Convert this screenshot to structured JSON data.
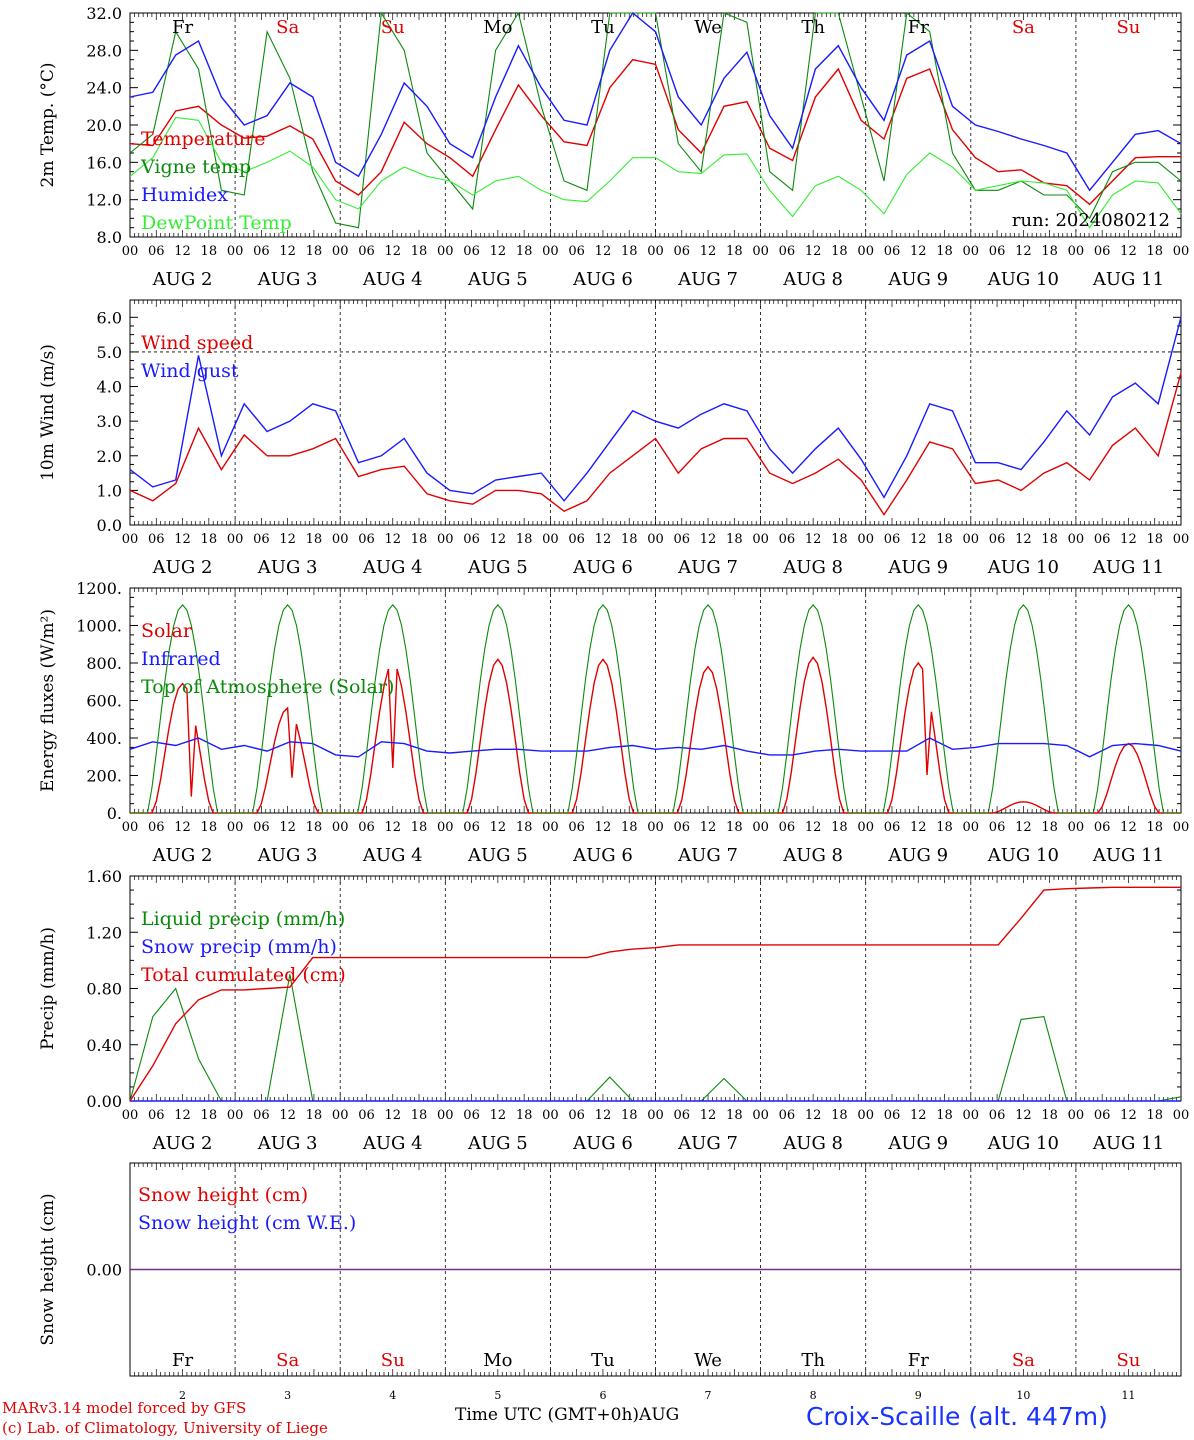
{
  "days": {
    "dates": [
      "AUG  2",
      "AUG  3",
      "AUG  4",
      "AUG  5",
      "AUG  6",
      "AUG  7",
      "AUG  8",
      "AUG  9",
      "AUG 10",
      "AUG 11"
    ],
    "weekdays": [
      "Fr",
      "Sa",
      "Su",
      "Mo",
      "Tu",
      "We",
      "Th",
      "Fr",
      "Sa",
      "Su"
    ],
    "weekend_flags": [
      false,
      true,
      true,
      false,
      false,
      false,
      false,
      false,
      true,
      true
    ],
    "day_numbers": [
      "2",
      "3",
      "4",
      "5",
      "6",
      "7",
      "8",
      "9",
      "10",
      "11"
    ],
    "hour_ticks": [
      "00",
      "06",
      "12",
      "18"
    ],
    "final_tick": "00"
  },
  "colors": {
    "red": "#e00000",
    "green": "#0a8a0a",
    "blue": "#1a1aff",
    "light_green": "#33ee33",
    "purple": "#7a2a8a"
  },
  "run_label": "run: 2024080212",
  "footer": {
    "credit_line1": "MARv3.14 model forced by GFS",
    "credit_line2": "(c) Lab. of Climatology, University of Liege",
    "time_axis": "Time UTC (GMT+0h)",
    "month": "AUG",
    "station": "Croix-Scaille (alt. 447m)"
  },
  "chart_data": [
    {
      "type": "line",
      "ylabel": "2m Temp. (°C)",
      "ylim": [
        8,
        32
      ],
      "yticks": [
        8,
        12,
        16,
        20,
        24,
        28,
        32
      ],
      "ytick_labels": [
        "8.0",
        "12.0",
        "16.0",
        "20.0",
        "24.0",
        "28.0",
        "32.0"
      ],
      "x_unit": "hours since Aug 2 00 UTC (6-hourly)",
      "series": [
        {
          "name": "Temperature",
          "color": "red",
          "values": [
            18,
            17.8,
            21.5,
            22,
            20,
            18.6,
            18.8,
            19.9,
            18.5,
            14,
            12.5,
            15,
            20.3,
            18,
            16.5,
            14.5,
            19.5,
            24.3,
            21,
            18.2,
            17.8,
            24,
            27,
            26.5,
            19.5,
            17,
            22,
            22.5,
            17.5,
            16.2,
            23,
            26,
            20.5,
            18.5,
            25,
            26,
            19.5,
            16.5,
            15,
            15.2,
            13.8,
            13.5,
            11.5,
            14,
            16.5,
            16.6,
            16.6
          ]
        },
        {
          "name": "Vigne temp",
          "color": "green",
          "values": [
            17,
            19,
            30,
            26,
            13,
            12.5,
            30,
            25,
            15,
            9.5,
            9,
            32,
            28,
            17,
            14,
            11,
            28,
            32,
            22,
            14,
            13,
            32,
            33,
            34,
            18,
            15,
            32,
            31,
            15,
            13,
            32,
            32,
            23,
            14,
            32,
            30,
            17,
            13,
            13,
            14,
            12.5,
            12.5,
            10,
            15,
            16,
            16,
            14
          ]
        },
        {
          "name": "Humidex",
          "color": "blue",
          "values": [
            23,
            23.5,
            27.5,
            29,
            23,
            20,
            21,
            24.5,
            23,
            16,
            14.5,
            19,
            24.5,
            22,
            18,
            16.5,
            23,
            28.5,
            24,
            20.5,
            20,
            28,
            32,
            30,
            23,
            20,
            25,
            27.8,
            21,
            17.5,
            26,
            28.5,
            24,
            20.5,
            27.5,
            29,
            22,
            20,
            19.3,
            18.5,
            17.8,
            17,
            13,
            16,
            19,
            19.4,
            18
          ]
        },
        {
          "name": "DewPoint Temp",
          "color": "light_green",
          "values": [
            14.5,
            16.5,
            20.8,
            20.5,
            16,
            15,
            16,
            17.2,
            15.5,
            12,
            11,
            14,
            15.5,
            14.5,
            14,
            12.5,
            14,
            14.5,
            13,
            12,
            11.8,
            14,
            16.5,
            16.5,
            15,
            14.8,
            16.8,
            16.9,
            13,
            10.2,
            13.5,
            14.5,
            13,
            10.5,
            14.7,
            17,
            15.5,
            13,
            13.5,
            14,
            13.8,
            13,
            9,
            12.5,
            14,
            13.8,
            10.5
          ]
        }
      ]
    },
    {
      "type": "line",
      "ylabel": "10m Wind (m/s)",
      "ylim": [
        0,
        6.5
      ],
      "yticks": [
        0,
        1,
        2,
        3,
        4,
        5,
        6
      ],
      "ytick_labels": [
        "0.0",
        "1.0",
        "2.0",
        "3.0",
        "4.0",
        "5.0",
        "6.0"
      ],
      "ref_line": 5,
      "series": [
        {
          "name": "Wind speed",
          "color": "red",
          "values": [
            1,
            0.7,
            1.2,
            2.8,
            1.6,
            2.6,
            2,
            2,
            2.2,
            2.5,
            1.4,
            1.6,
            1.7,
            0.9,
            0.7,
            0.6,
            1,
            1,
            0.9,
            0.4,
            0.7,
            1.5,
            2,
            2.5,
            1.5,
            2.2,
            2.5,
            2.5,
            1.5,
            1.2,
            1.5,
            1.9,
            1.3,
            0.3,
            1.3,
            2.4,
            2.2,
            1.2,
            1.3,
            1,
            1.5,
            1.8,
            1.3,
            2.3,
            2.8,
            2,
            4.4
          ]
        },
        {
          "name": "Wind gust",
          "color": "blue",
          "values": [
            1.6,
            1.1,
            1.3,
            4.9,
            2,
            3.5,
            2.7,
            3,
            3.5,
            3.3,
            1.8,
            2,
            2.5,
            1.5,
            1,
            0.9,
            1.3,
            1.4,
            1.5,
            0.7,
            1.5,
            2.4,
            3.3,
            3,
            2.8,
            3.2,
            3.5,
            3.3,
            2.2,
            1.5,
            2.2,
            2.8,
            1.9,
            0.8,
            2,
            3.5,
            3.3,
            1.8,
            1.8,
            1.6,
            2.4,
            3.3,
            2.6,
            3.7,
            4.1,
            3.5,
            6
          ]
        }
      ]
    },
    {
      "type": "line",
      "ylabel": "Energy fluxes (W/m²)",
      "ylim": [
        0,
        1200
      ],
      "yticks": [
        0,
        200,
        400,
        600,
        800,
        1000,
        1200
      ],
      "ytick_labels": [
        "0.",
        "200.",
        "400.",
        "600.",
        "800.",
        "1000.",
        "1200."
      ],
      "series": [
        {
          "name": "Solar",
          "color": "red",
          "values": [
            0,
            0,
            0,
            650,
            0,
            0,
            0,
            0,
            0,
            0,
            0,
            0,
            0,
            0,
            0,
            0,
            0,
            0,
            0,
            0,
            0,
            0,
            0,
            0,
            0,
            0,
            0,
            0,
            0,
            0,
            0,
            0,
            0,
            0,
            0,
            0,
            0,
            0,
            0,
            0,
            0,
            0,
            0,
            0,
            0,
            0,
            0
          ]
        },
        {
          "name": "Infrared",
          "color": "blue",
          "values": [
            340,
            380,
            360,
            400,
            340,
            360,
            330,
            380,
            370,
            310,
            300,
            380,
            370,
            330,
            320,
            330,
            340,
            340,
            330,
            330,
            330,
            350,
            360,
            340,
            350,
            340,
            360,
            330,
            310,
            310,
            330,
            340,
            330,
            330,
            330,
            400,
            340,
            350,
            370,
            370,
            370,
            360,
            300,
            360,
            370,
            360,
            330
          ]
        },
        {
          "name": "Top of Atmosphere (Solar)",
          "color": "green",
          "values": [
            0,
            0,
            0,
            1110,
            0,
            0,
            0,
            0,
            0,
            0,
            0,
            0,
            0,
            0,
            0,
            0,
            0,
            0,
            0,
            0,
            0,
            0,
            0,
            0,
            0,
            0,
            0,
            0,
            0,
            0,
            0,
            0,
            0,
            0,
            0,
            0,
            0,
            0,
            0,
            0,
            0,
            0,
            0,
            0,
            0,
            0,
            0
          ]
        }
      ]
    },
    {
      "type": "line",
      "ylabel": "Precip (mm/h)",
      "ylim": [
        0,
        1.6
      ],
      "yticks": [
        0,
        0.4,
        0.8,
        1.2,
        1.6
      ],
      "ytick_labels": [
        "0.00",
        "0.40",
        "0.80",
        "1.20",
        "1.60"
      ],
      "series": [
        {
          "name": "Liquid precip (mm/h)",
          "color": "green",
          "values": [
            0,
            0.6,
            0.8,
            0.3,
            0,
            0,
            0,
            0.9,
            0,
            0,
            0,
            0,
            0,
            0,
            0,
            0,
            0,
            0,
            0,
            0,
            0,
            0.17,
            0,
            0,
            0,
            0,
            0.16,
            0,
            0,
            0,
            0,
            0,
            0,
            0,
            0,
            0,
            0,
            0,
            0,
            0.58,
            0.6,
            0,
            0,
            0,
            0,
            0,
            0.03
          ]
        },
        {
          "name": "Snow precip (mm/h)",
          "color": "blue",
          "values": [
            0,
            0,
            0,
            0,
            0,
            0,
            0,
            0,
            0,
            0,
            0,
            0,
            0,
            0,
            0,
            0,
            0,
            0,
            0,
            0,
            0,
            0,
            0,
            0,
            0,
            0,
            0,
            0,
            0,
            0,
            0,
            0,
            0,
            0,
            0,
            0,
            0,
            0,
            0,
            0,
            0,
            0,
            0,
            0,
            0,
            0,
            0
          ]
        },
        {
          "name": "Total cumulated (cm)",
          "color": "red",
          "values": [
            0,
            0.25,
            0.55,
            0.72,
            0.79,
            0.79,
            0.8,
            0.81,
            1.02,
            1.02,
            1.02,
            1.02,
            1.02,
            1.02,
            1.02,
            1.02,
            1.02,
            1.02,
            1.02,
            1.02,
            1.02,
            1.06,
            1.08,
            1.09,
            1.11,
            1.11,
            1.11,
            1.11,
            1.11,
            1.11,
            1.11,
            1.11,
            1.11,
            1.11,
            1.11,
            1.11,
            1.11,
            1.11,
            1.11,
            1.3,
            1.5,
            1.51,
            1.515,
            1.52,
            1.52,
            1.52,
            1.52
          ]
        }
      ]
    },
    {
      "type": "line",
      "ylabel": "Snow height (cm)",
      "ylim": [
        -1,
        1
      ],
      "yticks": [
        0
      ],
      "ytick_labels": [
        "0.00"
      ],
      "series": [
        {
          "name": "Snow height (cm)",
          "color": "red",
          "values": [
            0,
            0
          ]
        },
        {
          "name": "Snow height (cm W.E.)",
          "color": "blue",
          "values": [
            0,
            0
          ]
        }
      ]
    }
  ]
}
